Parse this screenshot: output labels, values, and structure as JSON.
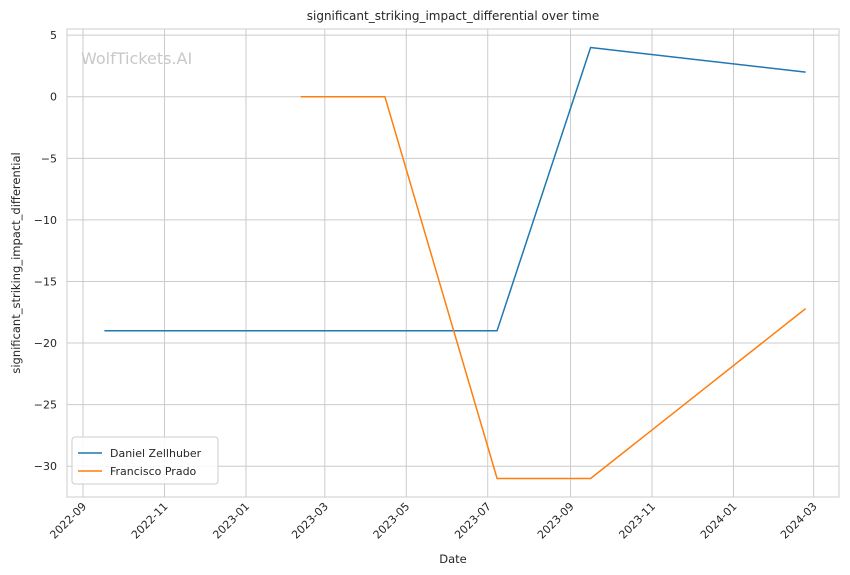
{
  "chart_data": {
    "type": "line",
    "title": "significant_striking_impact_differential over time",
    "xlabel": "Date",
    "ylabel": "significant_striking_impact_differential",
    "watermark": "WolfTickets.AI",
    "x_ticks": [
      "2022-09",
      "2022-11",
      "2023-01",
      "2023-03",
      "2023-05",
      "2023-07",
      "2023-09",
      "2023-11",
      "2024-01",
      "2024-03"
    ],
    "y_ticks": [
      5,
      0,
      -5,
      -10,
      -15,
      -20,
      -25,
      -30
    ],
    "ylim": [
      -32.5,
      5.5
    ],
    "xlim": [
      "2022-08-20",
      "2024-03-20"
    ],
    "grid": true,
    "legend_position": "lower-left",
    "series": [
      {
        "name": "Daniel Zellhuber",
        "color": "#1f77b4",
        "points": [
          {
            "x": "2022-09-17",
            "y": -19
          },
          {
            "x": "2023-07-08",
            "y": -19
          },
          {
            "x": "2023-09-16",
            "y": 4
          },
          {
            "x": "2024-02-24",
            "y": 2
          }
        ]
      },
      {
        "name": "Francisco Prado",
        "color": "#ff7f0e",
        "points": [
          {
            "x": "2023-02-11",
            "y": 0
          },
          {
            "x": "2023-04-15",
            "y": 0
          },
          {
            "x": "2023-07-08",
            "y": -31
          },
          {
            "x": "2023-09-16",
            "y": -31
          },
          {
            "x": "2024-02-24",
            "y": -17.2
          }
        ]
      }
    ]
  }
}
